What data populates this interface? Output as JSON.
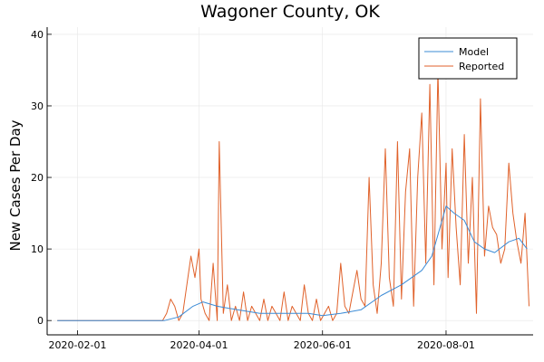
{
  "chart_data": {
    "type": "line",
    "title": "Wagoner County, OK",
    "ylabel": "New Cases Per Day",
    "xlabel": "",
    "x_start": "2020-01-22",
    "xlim": [
      "2020-01-17",
      "2020-09-13"
    ],
    "ylim": [
      -2,
      41
    ],
    "yticks": [
      0,
      10,
      20,
      30,
      40
    ],
    "xticks": [
      "2020-02-01",
      "2020-04-01",
      "2020-06-01",
      "2020-08-01"
    ],
    "grid": true,
    "legend_position": "top-right",
    "colors": {
      "Model": "#3b8bd6",
      "Reported": "#e0622b"
    },
    "series": [
      {
        "name": "Model",
        "x": [
          "2020-01-22",
          "2020-03-15",
          "2020-03-22",
          "2020-03-29",
          "2020-04-03",
          "2020-04-10",
          "2020-04-20",
          "2020-05-01",
          "2020-05-15",
          "2020-05-25",
          "2020-06-01",
          "2020-06-10",
          "2020-06-20",
          "2020-06-30",
          "2020-07-10",
          "2020-07-20",
          "2020-07-25",
          "2020-07-29",
          "2020-08-01",
          "2020-08-05",
          "2020-08-10",
          "2020-08-15",
          "2020-08-20",
          "2020-08-25",
          "2020-09-01",
          "2020-09-06",
          "2020-09-10"
        ],
        "values": [
          0,
          0,
          0.5,
          2,
          2.6,
          2,
          1.5,
          1,
          1,
          1,
          0.7,
          1,
          1.5,
          3.5,
          5,
          7,
          9,
          13,
          16,
          15,
          14,
          11,
          10,
          9.5,
          11,
          11.5,
          10
        ]
      },
      {
        "name": "Reported",
        "x": [
          "2020-01-22",
          "2020-03-10",
          "2020-03-14",
          "2020-03-16",
          "2020-03-18",
          "2020-03-20",
          "2020-03-22",
          "2020-03-24",
          "2020-03-26",
          "2020-03-28",
          "2020-03-30",
          "2020-04-01",
          "2020-04-02",
          "2020-04-04",
          "2020-04-06",
          "2020-04-08",
          "2020-04-10",
          "2020-04-11",
          "2020-04-13",
          "2020-04-15",
          "2020-04-17",
          "2020-04-19",
          "2020-04-21",
          "2020-04-23",
          "2020-04-25",
          "2020-04-27",
          "2020-04-29",
          "2020-05-01",
          "2020-05-03",
          "2020-05-05",
          "2020-05-07",
          "2020-05-09",
          "2020-05-11",
          "2020-05-13",
          "2020-05-15",
          "2020-05-17",
          "2020-05-19",
          "2020-05-21",
          "2020-05-23",
          "2020-05-25",
          "2020-05-27",
          "2020-05-29",
          "2020-05-31",
          "2020-06-02",
          "2020-06-04",
          "2020-06-06",
          "2020-06-08",
          "2020-06-10",
          "2020-06-12",
          "2020-06-14",
          "2020-06-16",
          "2020-06-18",
          "2020-06-20",
          "2020-06-22",
          "2020-06-24",
          "2020-06-26",
          "2020-06-28",
          "2020-06-30",
          "2020-07-02",
          "2020-07-04",
          "2020-07-06",
          "2020-07-08",
          "2020-07-10",
          "2020-07-12",
          "2020-07-14",
          "2020-07-16",
          "2020-07-18",
          "2020-07-20",
          "2020-07-22",
          "2020-07-24",
          "2020-07-26",
          "2020-07-28",
          "2020-07-30",
          "2020-08-01",
          "2020-08-02",
          "2020-08-04",
          "2020-08-06",
          "2020-08-08",
          "2020-08-10",
          "2020-08-12",
          "2020-08-14",
          "2020-08-16",
          "2020-08-18",
          "2020-08-20",
          "2020-08-22",
          "2020-08-24",
          "2020-08-26",
          "2020-08-28",
          "2020-08-30",
          "2020-09-01",
          "2020-09-03",
          "2020-09-05",
          "2020-09-07",
          "2020-09-09",
          "2020-09-11"
        ],
        "values": [
          0,
          0,
          0,
          1,
          3,
          2,
          0,
          1,
          5,
          9,
          6,
          10,
          3,
          1,
          0,
          8,
          0,
          25,
          1,
          5,
          0,
          2,
          0,
          4,
          0,
          2,
          1,
          0,
          3,
          0,
          2,
          1,
          0,
          4,
          0,
          2,
          1,
          0,
          5,
          1,
          0,
          3,
          0,
          1,
          2,
          0,
          1,
          8,
          2,
          1,
          4,
          7,
          3,
          2,
          20,
          5,
          1,
          8,
          24,
          6,
          2,
          25,
          3,
          18,
          24,
          2,
          20,
          29,
          8,
          33,
          5,
          35,
          10,
          22,
          6,
          24,
          13,
          5,
          26,
          8,
          20,
          1,
          31,
          9,
          16,
          13,
          12,
          8,
          10,
          22,
          15,
          11,
          8,
          15,
          2
        ]
      }
    ]
  }
}
